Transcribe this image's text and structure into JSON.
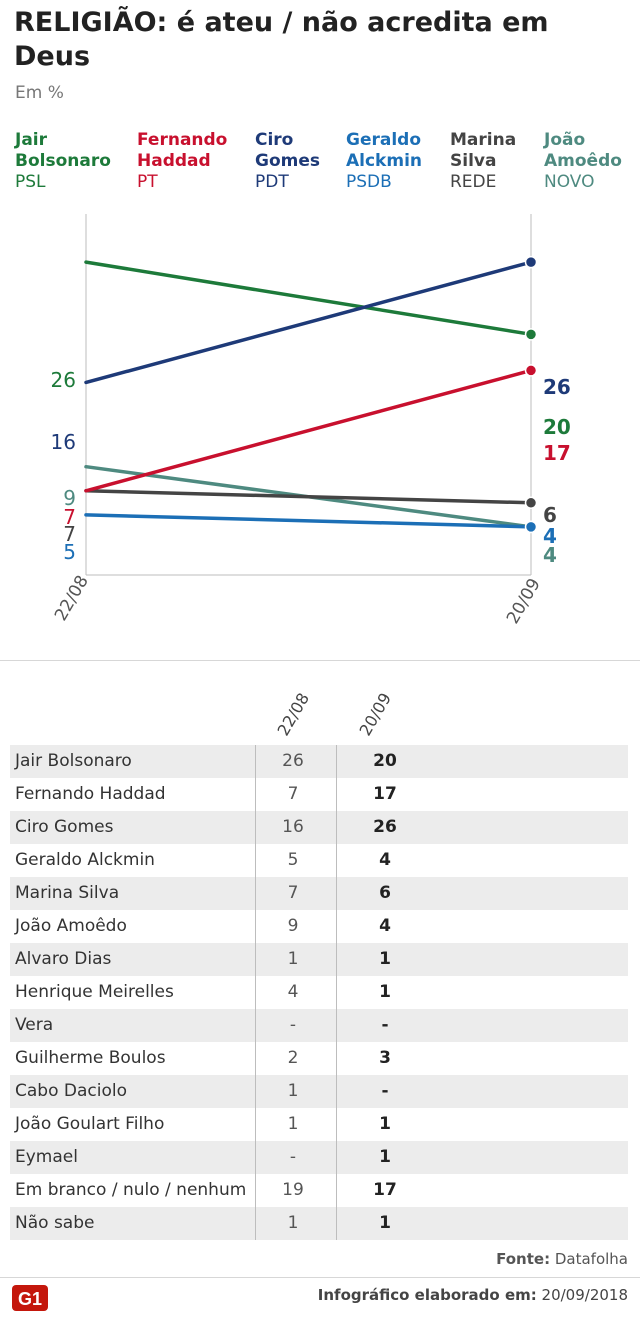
{
  "title": "RELIGIÃO: é ateu / não acredita em Deus",
  "subtitle": "Em %",
  "legend": [
    {
      "name": "Jair\nBolsonaro",
      "party": "PSL",
      "color": "#1d7a3a"
    },
    {
      "name": "Fernando\nHaddad",
      "party": "PT",
      "color": "#c8102e"
    },
    {
      "name": "Ciro\nGomes",
      "party": "PDT",
      "color": "#1e3a78"
    },
    {
      "name": "Geraldo\nAlckmin",
      "party": "PSDB",
      "color": "#1c6fb6"
    },
    {
      "name": "Marina\nSilva",
      "party": "REDE",
      "color": "#444444"
    },
    {
      "name": "João\nAmoêdo",
      "party": "NOVO",
      "color": "#4e8a80"
    }
  ],
  "chart_data": {
    "type": "line",
    "title": "RELIGIÃO: é ateu / não acredita em Deus",
    "subtitle": "Em %",
    "x": [
      "22/08",
      "20/09"
    ],
    "series": [
      {
        "name": "Jair Bolsonaro",
        "values": [
          26,
          20
        ],
        "color": "#1d7a3a"
      },
      {
        "name": "Fernando Haddad",
        "values": [
          7,
          17
        ],
        "color": "#c8102e"
      },
      {
        "name": "Ciro Gomes",
        "values": [
          16,
          26
        ],
        "color": "#1e3a78"
      },
      {
        "name": "Geraldo Alckmin",
        "values": [
          5,
          4
        ],
        "color": "#1c6fb6"
      },
      {
        "name": "Marina Silva",
        "values": [
          7,
          6
        ],
        "color": "#444444"
      },
      {
        "name": "João Amoêdo",
        "values": [
          9,
          4
        ],
        "color": "#4e8a80"
      }
    ],
    "ylim": [
      0,
      30
    ]
  },
  "table": {
    "headers": [
      "22/08",
      "20/09"
    ],
    "rows": [
      {
        "name": "Jair Bolsonaro",
        "v1": "26",
        "v2": "20"
      },
      {
        "name": "Fernando Haddad",
        "v1": "7",
        "v2": "17"
      },
      {
        "name": "Ciro Gomes",
        "v1": "16",
        "v2": "26"
      },
      {
        "name": "Geraldo Alckmin",
        "v1": "5",
        "v2": "4"
      },
      {
        "name": "Marina Silva",
        "v1": "7",
        "v2": "6"
      },
      {
        "name": "João Amoêdo",
        "v1": "9",
        "v2": "4"
      },
      {
        "name": "Alvaro Dias",
        "v1": "1",
        "v2": "1"
      },
      {
        "name": "Henrique Meirelles",
        "v1": "4",
        "v2": "1"
      },
      {
        "name": "Vera",
        "v1": "-",
        "v2": "-"
      },
      {
        "name": "Guilherme Boulos",
        "v1": "2",
        "v2": "3"
      },
      {
        "name": "Cabo Daciolo",
        "v1": "1",
        "v2": "-"
      },
      {
        "name": "João Goulart Filho",
        "v1": "1",
        "v2": "1"
      },
      {
        "name": "Eymael",
        "v1": "-",
        "v2": "1"
      },
      {
        "name": "Em branco / nulo / nenhum",
        "v1": "19",
        "v2": "17"
      },
      {
        "name": "Não sabe",
        "v1": "1",
        "v2": "1"
      }
    ]
  },
  "source_label": "Fonte:",
  "source_value": "Datafolha",
  "footer_label": "Infográfico elaborado em:",
  "footer_date": "20/09/2018",
  "logo_text": "G1",
  "logo_color": "#c4170c"
}
